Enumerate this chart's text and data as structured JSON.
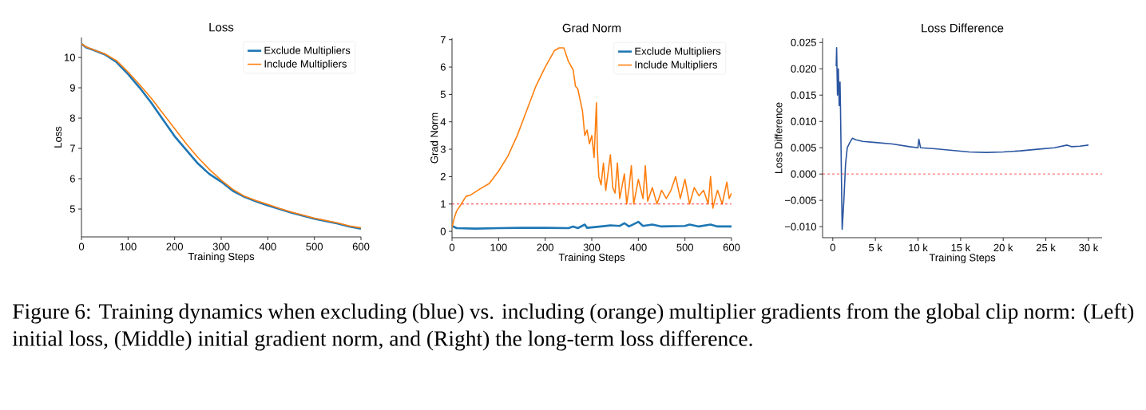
{
  "chart_data": [
    {
      "type": "line",
      "title": "Loss",
      "xlabel": "Training Steps",
      "ylabel": "Loss",
      "xlim": [
        0,
        600
      ],
      "ylim": [
        4.08,
        10.66
      ],
      "xticks": [
        0,
        100,
        200,
        300,
        400,
        500,
        600
      ],
      "yticks": [
        5,
        6,
        7,
        8,
        9,
        10
      ],
      "legend": "top right",
      "marker": "none",
      "line_style": "solid",
      "series": [
        {
          "name": "Exclude Multipliers",
          "color": "#1f77b4",
          "x": [
            0,
            10,
            25,
            50,
            75,
            100,
            125,
            150,
            175,
            200,
            225,
            250,
            275,
            300,
            325,
            350,
            375,
            400,
            425,
            450,
            475,
            500,
            525,
            550,
            575,
            600
          ],
          "values": [
            10.45,
            10.33,
            10.25,
            10.1,
            9.85,
            9.45,
            9.0,
            8.5,
            7.95,
            7.4,
            6.95,
            6.5,
            6.15,
            5.9,
            5.6,
            5.4,
            5.25,
            5.12,
            5.0,
            4.88,
            4.78,
            4.68,
            4.6,
            4.52,
            4.42,
            4.35
          ]
        },
        {
          "name": "Include Multipliers",
          "color": "#ff7f0e",
          "x": [
            0,
            10,
            25,
            50,
            75,
            100,
            125,
            150,
            175,
            200,
            225,
            250,
            275,
            300,
            325,
            350,
            375,
            400,
            425,
            450,
            475,
            500,
            525,
            550,
            575,
            600
          ],
          "values": [
            10.45,
            10.35,
            10.26,
            10.12,
            9.9,
            9.52,
            9.1,
            8.65,
            8.15,
            7.65,
            7.15,
            6.7,
            6.3,
            5.95,
            5.65,
            5.42,
            5.28,
            5.15,
            5.02,
            4.9,
            4.8,
            4.7,
            4.62,
            4.54,
            4.44,
            4.38
          ]
        }
      ],
      "annotations": [
        "Figure 6: Training dynamics when excluding (blue) vs. including (orange) multiplier gradients from the global clip norm: (Left) initial loss, (Middle) initial gradient norm, and (Right) the long-term loss difference."
      ]
    },
    {
      "type": "line",
      "title": "Grad Norm",
      "xlabel": "Training Steps",
      "ylabel": "Grad Norm",
      "xlim": [
        0,
        600
      ],
      "ylim": [
        -0.23,
        7.05
      ],
      "xticks": [
        0,
        100,
        200,
        300,
        400,
        500,
        600
      ],
      "yticks": [
        0,
        1,
        2,
        3,
        4,
        5,
        6,
        7
      ],
      "legend": "top right",
      "marker": "none",
      "line_style": "solid",
      "series": [
        {
          "name": "Exclude Multipliers",
          "color": "#1f77b4",
          "x": [
            0,
            10,
            50,
            100,
            150,
            200,
            250,
            260,
            270,
            285,
            290,
            320,
            340,
            360,
            370,
            380,
            400,
            410,
            430,
            450,
            500,
            510,
            530,
            555,
            570,
            600
          ],
          "values": [
            0.2,
            0.12,
            0.1,
            0.12,
            0.13,
            0.13,
            0.12,
            0.18,
            0.12,
            0.25,
            0.13,
            0.18,
            0.22,
            0.2,
            0.3,
            0.18,
            0.35,
            0.2,
            0.25,
            0.18,
            0.2,
            0.25,
            0.18,
            0.25,
            0.18,
            0.18
          ]
        },
        {
          "name": "Include Multipliers",
          "color": "#ff7f0e",
          "x": [
            0,
            5,
            10,
            20,
            30,
            40,
            60,
            80,
            100,
            120,
            140,
            160,
            180,
            200,
            220,
            230,
            240,
            250,
            260,
            265,
            270,
            280,
            285,
            290,
            295,
            300,
            305,
            310,
            312,
            315,
            320,
            325,
            330,
            340,
            345,
            350,
            355,
            360,
            370,
            375,
            380,
            385,
            390,
            400,
            410,
            415,
            420,
            430,
            440,
            450,
            460,
            470,
            480,
            490,
            500,
            510,
            520,
            530,
            540,
            550,
            555,
            560,
            565,
            570,
            580,
            590,
            595,
            600
          ],
          "values": [
            0.15,
            0.5,
            0.75,
            1.0,
            1.28,
            1.33,
            1.55,
            1.75,
            2.2,
            2.75,
            3.5,
            4.4,
            5.3,
            6.0,
            6.6,
            6.7,
            6.7,
            6.2,
            5.9,
            5.3,
            5.2,
            4.4,
            3.5,
            3.7,
            3.2,
            3.5,
            2.7,
            4.7,
            3.0,
            2.0,
            1.7,
            2.5,
            1.5,
            2.8,
            1.6,
            1.4,
            2.5,
            1.2,
            2.1,
            1.0,
            1.6,
            2.4,
            1.0,
            1.9,
            1.2,
            2.4,
            1.1,
            1.6,
            1.0,
            1.5,
            1.2,
            1.5,
            2.0,
            1.2,
            1.9,
            1.0,
            1.6,
            1.3,
            1.5,
            1.0,
            2.0,
            0.85,
            1.2,
            1.5,
            1.0,
            1.8,
            1.2,
            1.4
          ]
        }
      ],
      "ref_lines": [
        {
          "axis": "y",
          "value": 1,
          "color": "#ff0000",
          "line_style": "dashed"
        }
      ]
    },
    {
      "type": "line",
      "title": "Loss Difference",
      "xlabel": "Training Steps",
      "ylabel": "Loss Difference",
      "xlim": [
        -1200,
        31600
      ],
      "ylim": [
        -0.0121,
        0.0258
      ],
      "xticks": [
        0,
        {
          "value": 5000,
          "label": "5 k"
        },
        {
          "value": 10000,
          "label": "10 k"
        },
        {
          "value": 15000,
          "label": "15 k"
        },
        {
          "value": 20000,
          "label": "20 k"
        },
        {
          "value": 25000,
          "label": "25 k"
        },
        {
          "value": 30000,
          "label": "30 k"
        }
      ],
      "yticks": [
        {
          "value": -0.01,
          "label": "−0.010"
        },
        {
          "value": -0.005,
          "label": "−0.005"
        },
        {
          "value": 0,
          "label": "0.000"
        },
        {
          "value": 0.005,
          "label": "0.005"
        },
        {
          "value": 0.01,
          "label": "0.010"
        },
        {
          "value": 0.015,
          "label": "0.015"
        },
        {
          "value": 0.02,
          "label": "0.020"
        },
        {
          "value": 0.025,
          "label": "0.025"
        }
      ],
      "marker": "none",
      "line_style": "solid",
      "series": [
        {
          "color": "#2b55a0",
          "x": [
            400,
            450,
            550,
            650,
            750,
            850,
            900,
            1100,
            1300,
            1500,
            1700,
            2000,
            2300,
            2700,
            3500,
            5000,
            7000,
            9000,
            10000,
            10100,
            10300,
            12000,
            14000,
            16000,
            18000,
            20000,
            22000,
            24000,
            26000,
            27500,
            28000,
            29000,
            30000
          ],
          "values": [
            0.0205,
            0.024,
            0.015,
            0.02,
            0.013,
            0.0175,
            0.013,
            -0.0105,
            -0.005,
            0.002,
            0.005,
            0.006,
            0.0068,
            0.0065,
            0.0062,
            0.006,
            0.0057,
            0.0052,
            0.005,
            0.0066,
            0.005,
            0.0048,
            0.0045,
            0.0042,
            0.0041,
            0.0042,
            0.0044,
            0.0047,
            0.005,
            0.0055,
            0.0052,
            0.0053,
            0.0055
          ]
        }
      ],
      "ref_lines": [
        {
          "axis": "y",
          "value": 0,
          "color": "#ff0000",
          "line_style": "dashed"
        }
      ]
    }
  ]
}
